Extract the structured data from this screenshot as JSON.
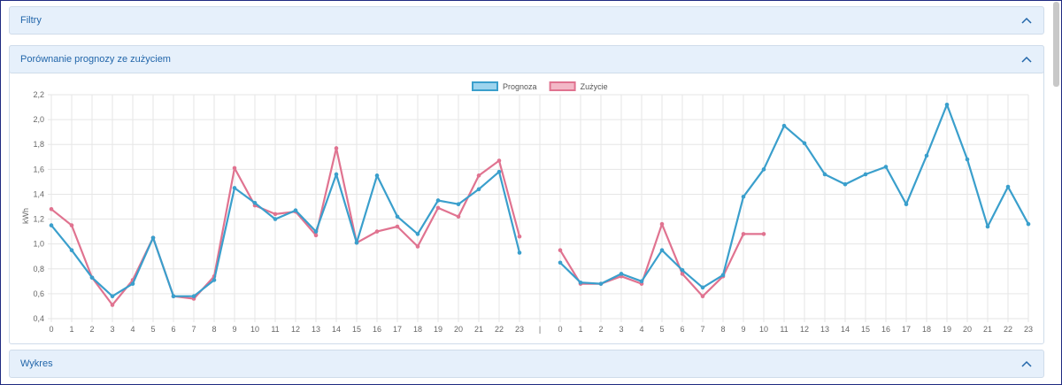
{
  "panels": {
    "filters": {
      "title": "Filtry"
    },
    "comparison": {
      "title": "Porównanie prognozy ze zużyciem"
    },
    "chart": {
      "title": "Wykres"
    }
  },
  "chart_data": {
    "type": "line",
    "ylabel": "kWh",
    "ylim": [
      0.4,
      2.2
    ],
    "yticks": [
      "0,4",
      "0,6",
      "0,8",
      "1,0",
      "1,2",
      "1,4",
      "1,6",
      "1,8",
      "2,0",
      "2,2"
    ],
    "categories": [
      "0",
      "1",
      "2",
      "3",
      "4",
      "5",
      "6",
      "7",
      "8",
      "9",
      "10",
      "11",
      "12",
      "13",
      "14",
      "15",
      "16",
      "17",
      "18",
      "19",
      "20",
      "21",
      "22",
      "23",
      "|",
      "0",
      "1",
      "2",
      "3",
      "4",
      "5",
      "6",
      "7",
      "8",
      "9",
      "10",
      "11",
      "12",
      "13",
      "14",
      "15",
      "16",
      "17",
      "18",
      "19",
      "20",
      "21",
      "22",
      "23"
    ],
    "legend_position": "top",
    "grid": true,
    "series": [
      {
        "name": "Prognoza",
        "color": "#3a9fcc",
        "fill": "#9dd4ee",
        "values": [
          1.15,
          0.95,
          0.73,
          0.58,
          0.68,
          1.05,
          0.58,
          0.58,
          0.71,
          1.45,
          1.33,
          1.2,
          1.27,
          1.1,
          1.56,
          1.01,
          1.55,
          1.22,
          1.08,
          1.35,
          1.32,
          1.44,
          1.58,
          0.93,
          null,
          0.85,
          0.69,
          0.68,
          0.76,
          0.7,
          0.95,
          0.79,
          0.65,
          0.75,
          1.38,
          1.6,
          1.95,
          1.81,
          1.56,
          1.48,
          1.56,
          1.62,
          1.32,
          1.71,
          2.12,
          1.68,
          1.14,
          1.46,
          1.16
        ]
      },
      {
        "name": "Zużycie",
        "color": "#e07390",
        "fill": "#f3b8c7",
        "values": [
          1.28,
          1.15,
          0.73,
          0.51,
          0.71,
          1.05,
          0.58,
          0.56,
          0.74,
          1.61,
          1.31,
          1.24,
          1.26,
          1.07,
          1.77,
          1.01,
          1.1,
          1.14,
          0.98,
          1.29,
          1.22,
          1.55,
          1.67,
          1.06,
          null,
          0.95,
          0.68,
          0.68,
          0.74,
          0.68,
          1.16,
          0.76,
          0.58,
          0.74,
          1.08,
          1.08,
          null,
          null,
          null,
          null,
          null,
          null,
          null,
          null,
          null,
          null,
          null,
          null,
          null
        ]
      }
    ]
  }
}
